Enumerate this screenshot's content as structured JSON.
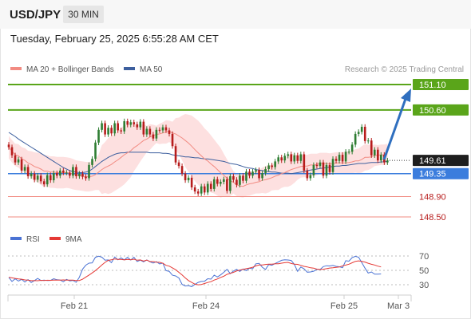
{
  "header": {
    "symbol": "USD/JPY",
    "timeframe": "30 MIN",
    "datetime": "Tuesday, February 25, 2025 6:55:28 AM CET"
  },
  "legend": [
    {
      "label": "MA 20 + Bollinger Bands",
      "color": "#f28b82"
    },
    {
      "label": "MA 50",
      "color": "#3d5f9e"
    }
  ],
  "credit": "Research © 2025 Trading Central",
  "colors": {
    "up": "#2e7d32",
    "down": "#b71c1c",
    "resistance": "#5aa51a",
    "support": "#3b7ddd",
    "target_line": "#f28b82",
    "band_fill": "#fde0e0",
    "arrow": "#2f6fbf"
  },
  "chart_data": [
    {
      "type": "candlestick",
      "x_ticks": [
        "Feb 21",
        "Feb 24",
        "Feb 25",
        "Mar 3"
      ],
      "y_range": [
        148.3,
        151.3
      ],
      "levels": [
        {
          "value": "151.10",
          "kind": "resistance"
        },
        {
          "value": "150.60",
          "kind": "resistance"
        },
        {
          "value": "149.61",
          "kind": "last"
        },
        {
          "value": "149.35",
          "kind": "support"
        },
        {
          "value": "148.90",
          "kind": "target"
        },
        {
          "value": "148.50",
          "kind": "target"
        }
      ],
      "close": [
        149.87,
        149.71,
        149.57,
        149.63,
        149.41,
        149.48,
        149.3,
        149.35,
        149.23,
        149.31,
        149.2,
        149.14,
        149.32,
        149.22,
        149.36,
        149.31,
        149.41,
        149.37,
        149.37,
        149.31,
        149.48,
        149.3,
        149.35,
        149.29,
        149.26,
        149.52,
        149.64,
        149.96,
        150.21,
        150.34,
        150.12,
        150.25,
        150.14,
        150.34,
        150.2,
        150.18,
        150.38,
        150.31,
        150.36,
        150.32,
        150.26,
        150.37,
        150.12,
        150.23,
        150.12,
        150.04,
        150.21,
        150.2,
        150.26,
        150.2,
        150.13,
        149.89,
        149.57,
        149.5,
        149.35,
        149.22,
        149.27,
        149.08,
        149.0,
        148.96,
        149.1,
        148.98,
        149.15,
        149.05,
        149.24,
        149.15,
        149.19,
        149.24,
        149.01,
        149.3,
        149.23,
        149.13,
        149.31,
        149.21,
        149.39,
        149.31,
        149.39,
        149.42,
        149.26,
        149.36,
        149.44,
        149.51,
        149.48,
        149.59,
        149.67,
        149.61,
        149.7,
        149.73,
        149.59,
        149.71,
        149.6,
        149.73,
        149.41,
        149.26,
        149.32,
        149.52,
        149.5,
        149.57,
        149.31,
        149.52,
        149.38,
        149.64,
        149.6,
        149.72,
        149.59,
        149.78,
        149.78,
        149.92,
        150.13,
        150.17,
        150.27,
        149.99,
        150.0,
        149.71,
        149.82,
        149.61,
        149.72,
        149.57,
        149.61
      ],
      "ma20": [
        149.87,
        149.79,
        149.72,
        149.7,
        149.64,
        149.61,
        149.56,
        149.53,
        149.49,
        149.47,
        149.44,
        149.4,
        149.4,
        149.38,
        149.38,
        149.37,
        149.37,
        149.37,
        149.37,
        149.36,
        149.34,
        149.32,
        149.31,
        149.3,
        149.29,
        149.29,
        149.3,
        149.33,
        149.38,
        149.43,
        149.47,
        149.5,
        149.53,
        149.58,
        149.62,
        149.67,
        149.72,
        149.76,
        149.8,
        149.86,
        149.9,
        149.95,
        150.0,
        150.03,
        150.07,
        150.1,
        150.12,
        150.13,
        150.15,
        150.17,
        150.18,
        150.15,
        150.13,
        150.09,
        150.05,
        150.0,
        149.95,
        149.89,
        149.82,
        149.76,
        149.7,
        149.64,
        149.6,
        149.54,
        149.49,
        149.43,
        149.37,
        149.32,
        149.26,
        149.21,
        149.18,
        149.13,
        149.11,
        149.1,
        149.13,
        149.15,
        149.16,
        149.18,
        149.19,
        149.22,
        149.23,
        149.25,
        149.27,
        149.3,
        149.32,
        149.35,
        149.37,
        149.4,
        149.43,
        149.45,
        149.47,
        149.49,
        149.5,
        149.5,
        149.52,
        149.52,
        149.53,
        149.55,
        149.55,
        149.55,
        149.54,
        149.55,
        149.56,
        149.56,
        149.56,
        149.56,
        149.57,
        149.58,
        149.6,
        149.6,
        149.63,
        149.67,
        149.67,
        149.68,
        149.71,
        149.71,
        149.72,
        149.72,
        149.74
      ],
      "bb_width": [
        0.22,
        0.22,
        0.22,
        0.23,
        0.23,
        0.24,
        0.24,
        0.26,
        0.28,
        0.29,
        0.31,
        0.31,
        0.31,
        0.31,
        0.31,
        0.31,
        0.31,
        0.31,
        0.3,
        0.3,
        0.3,
        0.29,
        0.29,
        0.29,
        0.29,
        0.29,
        0.29,
        0.3,
        0.35,
        0.48,
        0.5,
        0.55,
        0.56,
        0.57,
        0.57,
        0.58,
        0.58,
        0.55,
        0.52,
        0.46,
        0.41,
        0.36,
        0.32,
        0.26,
        0.25,
        0.21,
        0.17,
        0.2,
        0.21,
        0.23,
        0.21,
        0.22,
        0.31,
        0.36,
        0.44,
        0.52,
        0.56,
        0.6,
        0.62,
        0.63,
        0.62,
        0.6,
        0.58,
        0.56,
        0.53,
        0.51,
        0.49,
        0.42,
        0.37,
        0.3,
        0.22,
        0.22,
        0.22,
        0.22,
        0.22,
        0.23,
        0.22,
        0.22,
        0.23,
        0.25,
        0.27,
        0.27,
        0.25,
        0.27,
        0.29,
        0.28,
        0.28,
        0.31,
        0.31,
        0.28,
        0.24,
        0.22,
        0.22,
        0.22,
        0.22,
        0.22,
        0.21,
        0.21,
        0.21,
        0.21,
        0.21,
        0.21,
        0.21,
        0.21,
        0.21,
        0.22,
        0.22,
        0.22,
        0.23,
        0.24,
        0.26,
        0.26,
        0.25,
        0.23,
        0.21,
        0.2,
        0.2,
        0.2,
        0.2
      ],
      "ma50": [
        150.16,
        150.12,
        150.08,
        150.03,
        149.99,
        149.95,
        149.91,
        149.87,
        149.83,
        149.79,
        149.75,
        149.71,
        149.67,
        149.63,
        149.59,
        149.55,
        149.51,
        149.47,
        149.44,
        149.41,
        149.39,
        149.38,
        149.37,
        149.37,
        149.38,
        149.4,
        149.44,
        149.49,
        149.54,
        149.59,
        149.63,
        149.67,
        149.7,
        149.73,
        149.75,
        149.76,
        149.76,
        149.77,
        149.77,
        149.77,
        149.77,
        149.77,
        149.77,
        149.77,
        149.76,
        149.76,
        149.76,
        149.76,
        149.75,
        149.75,
        149.74,
        149.72,
        149.71,
        149.7,
        149.69,
        149.68,
        149.68,
        149.67,
        149.66,
        149.66,
        149.65,
        149.64,
        149.64,
        149.63,
        149.62,
        149.61,
        149.6,
        149.59,
        149.57,
        149.55,
        149.54,
        149.53,
        149.51,
        149.49,
        149.47,
        149.46,
        149.45,
        149.43,
        149.42,
        149.41,
        149.4,
        149.39,
        149.38,
        149.38,
        149.37,
        149.36,
        149.36,
        149.36,
        149.35,
        149.36,
        149.37,
        149.38,
        149.39,
        149.41,
        149.42,
        149.43,
        149.44,
        149.45,
        149.46,
        149.47,
        149.48,
        149.49,
        149.5,
        149.5,
        149.51,
        149.51,
        149.52,
        149.53,
        149.54,
        149.55,
        149.55,
        149.55,
        149.56,
        149.57,
        149.57,
        149.57,
        149.58,
        149.58,
        149.59
      ]
    },
    {
      "type": "line",
      "series": [
        {
          "name": "RSI",
          "color": "#4a72d4"
        },
        {
          "name": "9MA",
          "color": "#e53935"
        }
      ],
      "y_ticks": [
        "70",
        "50",
        "30"
      ],
      "y_range": [
        20,
        80
      ],
      "rsi": [
        40.24,
        34.58,
        38.26,
        35.13,
        37.42,
        33.79,
        37.06,
        33.09,
        35.81,
        38.79,
        35.88,
        36.32,
        35.82,
        36.01,
        38.38,
        36.84,
        36.5,
        34.09,
        37.4,
        35.36,
        36.04,
        33.35,
        40.46,
        51.82,
        57.17,
        59.98,
        60.4,
        68.17,
        69.64,
        68.37,
        64.25,
        64.55,
        60.72,
        68.56,
        64.67,
        67.5,
        64.61,
        68.06,
        64.45,
        68.27,
        62.29,
        64.17,
        61.92,
        64.56,
        61.92,
        60.22,
        62.09,
        58.99,
        60.12,
        49.54,
        48.57,
        43.23,
        42.24,
        39.28,
        30.49,
        28.17,
        28.75,
        27.29,
        30.47,
        33.23,
        34.53,
        34.73,
        38.33,
        37.8,
        43.34,
        40.81,
        43.71,
        47.22,
        51.45,
        45.42,
        49.02,
        51.4,
        48.46,
        52.02,
        49.57,
        53.09,
        52.08,
        59.11,
        59.62,
        54.37,
        51.26,
        58.06,
        57.13,
        59.54,
        61.8,
        63.99,
        64.81,
        64.49,
        63.82,
        58.1,
        48.51,
        54.68,
        52.22,
        47.46,
        47.78,
        48.8,
        51.45,
        51.12,
        55.24,
        56.41,
        56.13,
        56.86,
        55.55,
        55.05,
        53.76,
        63.5,
        62.76,
        67.77,
        69.52,
        68.35,
        60.82,
        53.15,
        46.26,
        47.73,
        44.65,
        44.76,
        45.05
      ],
      "ma9": [
        40.24,
        39.51,
        38.78,
        38.06,
        37.63,
        36.72,
        36.46,
        35.64,
        35.68,
        35.57,
        36.11,
        35.88,
        36.25,
        36.06,
        36.49,
        36.48,
        36.4,
        36.7,
        36.42,
        36.31,
        36.45,
        35.94,
        35.93,
        37.7,
        40.63,
        43.43,
        46.45,
        49.71,
        53.44,
        57.58,
        61.1,
        63.87,
        64.8,
        65.85,
        65.32,
        65.18,
        64.52,
        65.17,
        64.76,
        65.61,
        64.11,
        64.52,
        62.9,
        64.3,
        62.27,
        62.19,
        61.31,
        61.22,
        59.89,
        56.98,
        55.92,
        53.5,
        50.86,
        47.17,
        43.56,
        39.47,
        35.77,
        33.19,
        30.83,
        29.92,
        30.36,
        31.62,
        33.13,
        34.17,
        36.44,
        38.05,
        40.09,
        41.76,
        44.4,
        45.83,
        47.22,
        49.07,
        50.49,
        51.41,
        52.29,
        53.18,
        54.3,
        56.23,
        57.44,
        57.61,
        58.24,
        58.55,
        58.71,
        59.06,
        59.22,
        60.04,
        60.71,
        61.13,
        59.5,
        58.54,
        58.28,
        56.96,
        55.6,
        54.79,
        53.57,
        53.07,
        51.67,
        51.18,
        51.57,
        52.36,
        53.17,
        53.61,
        54.17,
        54.64,
        56.38,
        57.34,
        58.52,
        60.54,
        62.58,
        63.23,
        62.53,
        61.58,
        59.91,
        58.45,
        57.42,
        55.93,
        54.8
      ],
      "x_ticks": [
        "Feb 21",
        "Feb 24",
        "Feb 25",
        "Mar 3"
      ]
    }
  ]
}
